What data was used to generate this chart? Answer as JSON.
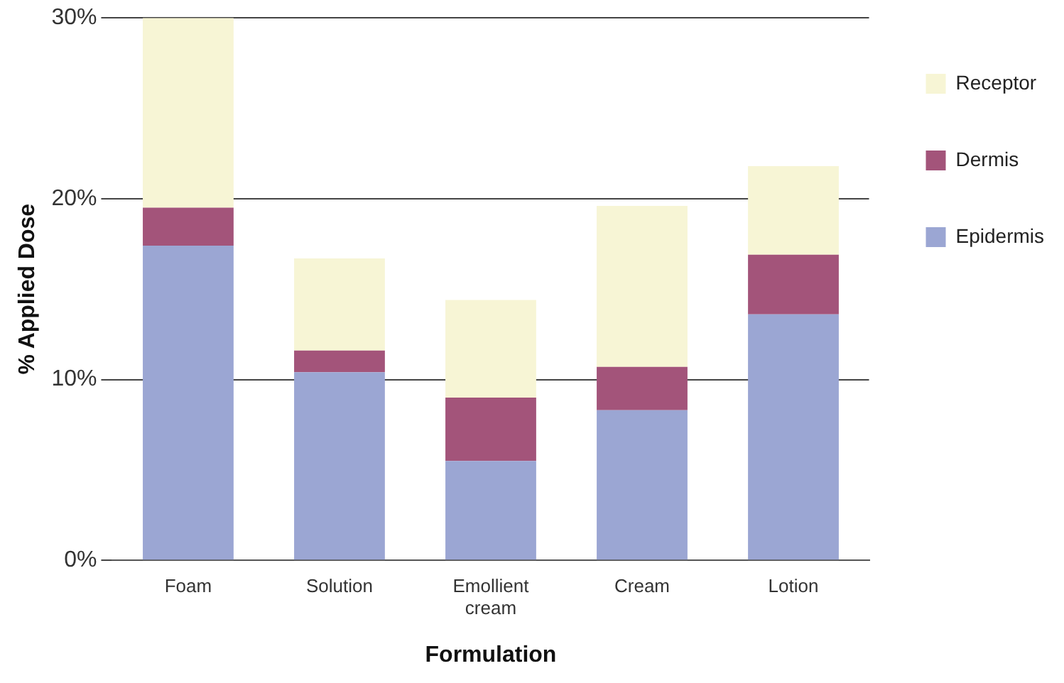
{
  "chart_data": {
    "type": "bar",
    "stacked": true,
    "xlabel": "Formulation",
    "ylabel": "% Applied Dose",
    "categories": [
      "Foam",
      "Solution",
      "Emollient cream",
      "Cream",
      "Lotion"
    ],
    "series": [
      {
        "name": "Epidermis",
        "color": "#9ba6d3",
        "values": [
          17.4,
          10.4,
          5.5,
          8.3,
          13.6
        ]
      },
      {
        "name": "Dermis",
        "color": "#a3547a",
        "values": [
          2.1,
          1.2,
          3.5,
          2.4,
          3.3
        ]
      },
      {
        "name": "Receptor",
        "color": "#f7f5d5",
        "values": [
          10.5,
          5.1,
          5.4,
          8.9,
          4.9
        ]
      }
    ],
    "ylim": [
      0,
      30
    ],
    "yticks": [
      {
        "value": 0,
        "label": "0%"
      },
      {
        "value": 10,
        "label": "10%"
      },
      {
        "value": 20,
        "label": "20%"
      },
      {
        "value": 30,
        "label": "30%"
      }
    ],
    "grid": "y",
    "legend": "right"
  }
}
